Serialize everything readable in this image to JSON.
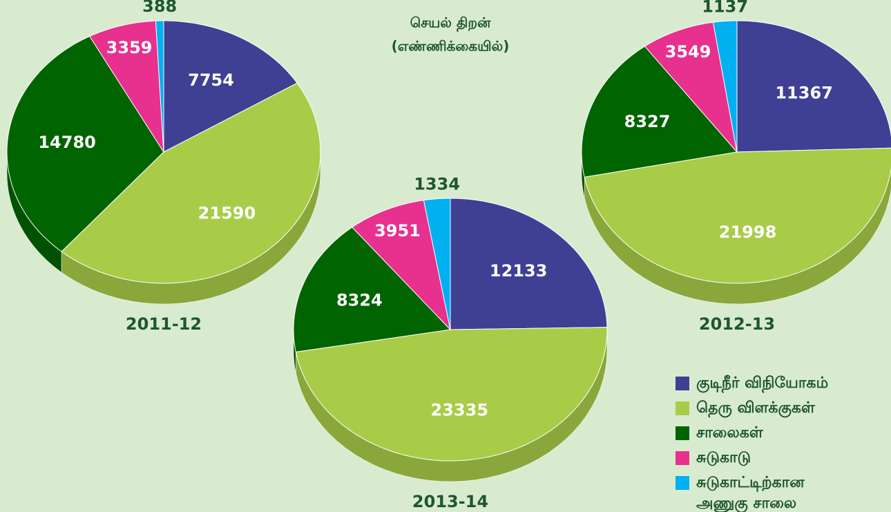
{
  "title": "செயல் திறன்",
  "subtitle": "(எண்ணிக்கையில்)",
  "chart_data": [
    {
      "type": "pie",
      "title": "2011-12",
      "categories": [
        "குடிநீர் விநியோகம்",
        "தெரு விளக்குகள்",
        "சாலைகள்",
        "சுடுகாடு",
        "சுடுகாட்டிற்கான அணுகு சாலை"
      ],
      "values": [
        7754,
        21590,
        14780,
        3359,
        388
      ],
      "colors": [
        "#3f3f94",
        "#a8cc48",
        "#006400",
        "#e8308e",
        "#00b0f0"
      ]
    },
    {
      "type": "pie",
      "title": "2013-14",
      "categories": [
        "குடிநீர் விநியோகம்",
        "தெரு விளக்குகள்",
        "சாலைகள்",
        "சுடுகாடு",
        "சுடுகாட்டிற்கான அணுகு சாலை"
      ],
      "values": [
        12133,
        23335,
        8324,
        3951,
        1334
      ],
      "colors": [
        "#3f3f94",
        "#a8cc48",
        "#006400",
        "#e8308e",
        "#00b0f0"
      ]
    },
    {
      "type": "pie",
      "title": "2012-13",
      "categories": [
        "குடிநீர் விநியோகம்",
        "தெரு விளக்குகள்",
        "சாலைகள்",
        "சுடுகாடு",
        "சுடுகாட்டிற்கான அணுகு சாலை"
      ],
      "values": [
        11367,
        21998,
        8327,
        3549,
        1137
      ],
      "colors": [
        "#3f3f94",
        "#a8cc48",
        "#006400",
        "#e8308e",
        "#00b0f0"
      ]
    }
  ]
}
